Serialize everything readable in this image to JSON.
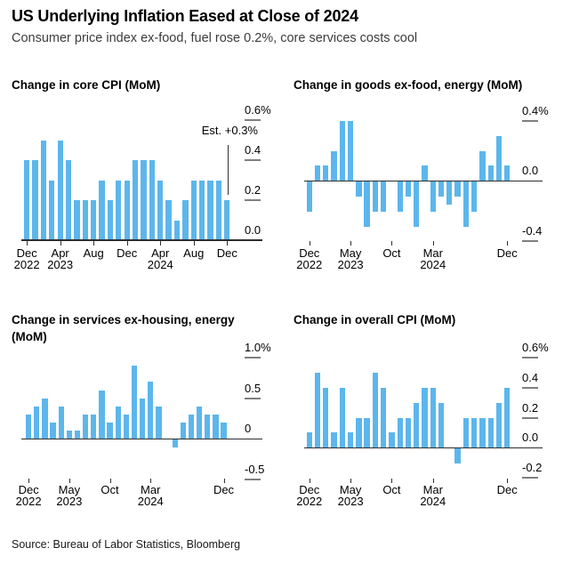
{
  "header": {
    "title": "US Underlying Inflation Eased at Close of 2024",
    "subtitle": "Consumer price index ex-food, fuel rose 0.2%, core services costs cool"
  },
  "source_line": "Source: Bureau of Labor Statistics, Bloomberg",
  "colors": {
    "bar": "#5CB6EC",
    "axis": "#2E2E2E",
    "dash": "#7F7F7F",
    "text": "#000000",
    "subtitle_text": "#3C3C3C"
  },
  "chart_data": [
    {
      "type": "bar",
      "title": "Change in core CPI (MoM)",
      "unit": "%",
      "categories": [
        "Dec 2022",
        "Jan 2023",
        "Feb 2023",
        "Mar 2023",
        "Apr 2023",
        "May 2023",
        "Jun 2023",
        "Jul 2023",
        "Aug 2023",
        "Sep 2023",
        "Oct 2023",
        "Nov 2023",
        "Dec 2023",
        "Jan 2024",
        "Feb 2024",
        "Mar 2024",
        "Apr 2024",
        "May 2024",
        "Jun 2024",
        "Jul 2024",
        "Aug 2024",
        "Sep 2024",
        "Oct 2024",
        "Nov 2024",
        "Dec 2024"
      ],
      "values": [
        0.4,
        0.4,
        0.5,
        0.3,
        0.5,
        0.4,
        0.2,
        0.2,
        0.2,
        0.3,
        0.2,
        0.3,
        0.3,
        0.4,
        0.4,
        0.4,
        0.3,
        0.2,
        0.1,
        0.2,
        0.3,
        0.3,
        0.3,
        0.3,
        0.2
      ],
      "ylim": [
        0,
        0.6
      ],
      "grid": "right-tick-dashes",
      "y_ticks": [
        {
          "label": "0.6%",
          "value": 0.6
        },
        {
          "label": "0.4",
          "value": 0.4
        },
        {
          "label": "0.2",
          "value": 0.2
        },
        {
          "label": "0.0",
          "value": 0.0
        }
      ],
      "x_ticks": [
        {
          "line1": "Dec",
          "line2": "2022",
          "index": 0
        },
        {
          "line1": "Apr",
          "line2": "2023",
          "index": 4
        },
        {
          "line1": "Aug",
          "line2": "",
          "index": 8
        },
        {
          "line1": "Dec",
          "line2": "",
          "index": 12
        },
        {
          "line1": "Apr",
          "line2": "2024",
          "index": 16
        },
        {
          "line1": "Aug",
          "line2": "",
          "index": 20
        },
        {
          "line1": "Dec",
          "line2": "",
          "index": 24
        }
      ],
      "annotation": {
        "text": "Est. +0.3%",
        "value": 0.3
      }
    },
    {
      "type": "bar",
      "title": "Change in goods ex-food, energy (MoM)",
      "unit": "%",
      "categories": [
        "Dec 2022",
        "Jan 2023",
        "Feb 2023",
        "Mar 2023",
        "Apr 2023",
        "May 2023",
        "Jun 2023",
        "Jul 2023",
        "Aug 2023",
        "Sep 2023",
        "Oct 2023",
        "Nov 2023",
        "Dec 2023",
        "Jan 2024",
        "Feb 2024",
        "Mar 2024",
        "Apr 2024",
        "May 2024",
        "Jun 2024",
        "Jul 2024",
        "Aug 2024",
        "Sep 2024",
        "Oct 2024",
        "Nov 2024",
        "Dec 2024"
      ],
      "values": [
        -0.2,
        0.1,
        0.1,
        0.2,
        0.4,
        0.4,
        -0.1,
        -0.3,
        -0.2,
        -0.2,
        0,
        -0.2,
        -0.1,
        -0.3,
        0.1,
        -0.2,
        -0.1,
        -0.15,
        -0.1,
        -0.3,
        -0.2,
        0.2,
        0.1,
        0.3,
        0.1
      ],
      "ylim": [
        -0.4,
        0.4
      ],
      "grid": "right-tick-dashes",
      "y_ticks": [
        {
          "label": "0.4%",
          "value": 0.4
        },
        {
          "label": "0.0",
          "value": 0.0
        },
        {
          "label": "-0.4",
          "value": -0.4
        }
      ],
      "x_ticks": [
        {
          "line1": "Dec",
          "line2": "2022",
          "index": 0
        },
        {
          "line1": "May",
          "line2": "2023",
          "index": 5
        },
        {
          "line1": "Oct",
          "line2": "",
          "index": 10
        },
        {
          "line1": "Mar",
          "line2": "2024",
          "index": 15
        },
        {
          "line1": "Dec",
          "line2": "",
          "index": 24
        }
      ]
    },
    {
      "type": "bar",
      "title": "Change in services ex-housing, energy (MoM)",
      "unit": "%",
      "categories": [
        "Dec 2022",
        "Jan 2023",
        "Feb 2023",
        "Mar 2023",
        "Apr 2023",
        "May 2023",
        "Jun 2023",
        "Jul 2023",
        "Aug 2023",
        "Sep 2023",
        "Oct 2023",
        "Nov 2023",
        "Dec 2023",
        "Jan 2024",
        "Feb 2024",
        "Mar 2024",
        "Apr 2024",
        "May 2024",
        "Jun 2024",
        "Jul 2024",
        "Aug 2024",
        "Sep 2024",
        "Oct 2024",
        "Nov 2024",
        "Dec 2024"
      ],
      "values": [
        0.3,
        0.4,
        0.5,
        0.2,
        0.4,
        0.1,
        0.1,
        0.3,
        0.3,
        0.6,
        0.2,
        0.4,
        0.3,
        0.9,
        0.5,
        0.7,
        0.4,
        0,
        -0.1,
        0.2,
        0.3,
        0.4,
        0.3,
        0.3,
        0.2
      ],
      "ylim": [
        -0.5,
        1.0
      ],
      "grid": "right-tick-dashes",
      "y_ticks": [
        {
          "label": "1.0%",
          "value": 1.0
        },
        {
          "label": "0.5",
          "value": 0.5
        },
        {
          "label": "0",
          "value": 0.0
        },
        {
          "label": "-0.5",
          "value": -0.5
        }
      ],
      "x_ticks": [
        {
          "line1": "Dec",
          "line2": "2022",
          "index": 0
        },
        {
          "line1": "May",
          "line2": "2023",
          "index": 5
        },
        {
          "line1": "Oct",
          "line2": "",
          "index": 10
        },
        {
          "line1": "Mar",
          "line2": "2024",
          "index": 15
        },
        {
          "line1": "Dec",
          "line2": "",
          "index": 24
        }
      ]
    },
    {
      "type": "bar",
      "title": "Change in overall CPI (MoM)",
      "unit": "%",
      "categories": [
        "Dec 2022",
        "Jan 2023",
        "Feb 2023",
        "Mar 2023",
        "Apr 2023",
        "May 2023",
        "Jun 2023",
        "Jul 2023",
        "Aug 2023",
        "Sep 2023",
        "Oct 2023",
        "Nov 2023",
        "Dec 2023",
        "Jan 2024",
        "Feb 2024",
        "Mar 2024",
        "Apr 2024",
        "May 2024",
        "Jun 2024",
        "Jul 2024",
        "Aug 2024",
        "Sep 2024",
        "Oct 2024",
        "Nov 2024",
        "Dec 2024"
      ],
      "values": [
        0.1,
        0.5,
        0.4,
        0.1,
        0.4,
        0.1,
        0.2,
        0.2,
        0.5,
        0.4,
        0.1,
        0.2,
        0.2,
        0.3,
        0.4,
        0.4,
        0.3,
        0,
        -0.1,
        0.2,
        0.2,
        0.2,
        0.2,
        0.3,
        0.4
      ],
      "ylim": [
        -0.2,
        0.6
      ],
      "grid": "right-tick-dashes",
      "y_ticks": [
        {
          "label": "0.6%",
          "value": 0.6
        },
        {
          "label": "0.4",
          "value": 0.4
        },
        {
          "label": "0.2",
          "value": 0.2
        },
        {
          "label": "0.0",
          "value": 0.0
        },
        {
          "label": "-0.2",
          "value": -0.2
        }
      ],
      "x_ticks": [
        {
          "line1": "Dec",
          "line2": "2022",
          "index": 0
        },
        {
          "line1": "May",
          "line2": "2023",
          "index": 5
        },
        {
          "line1": "Oct",
          "line2": "",
          "index": 10
        },
        {
          "line1": "Mar",
          "line2": "2024",
          "index": 15
        },
        {
          "line1": "Dec",
          "line2": "",
          "index": 24
        }
      ]
    }
  ]
}
